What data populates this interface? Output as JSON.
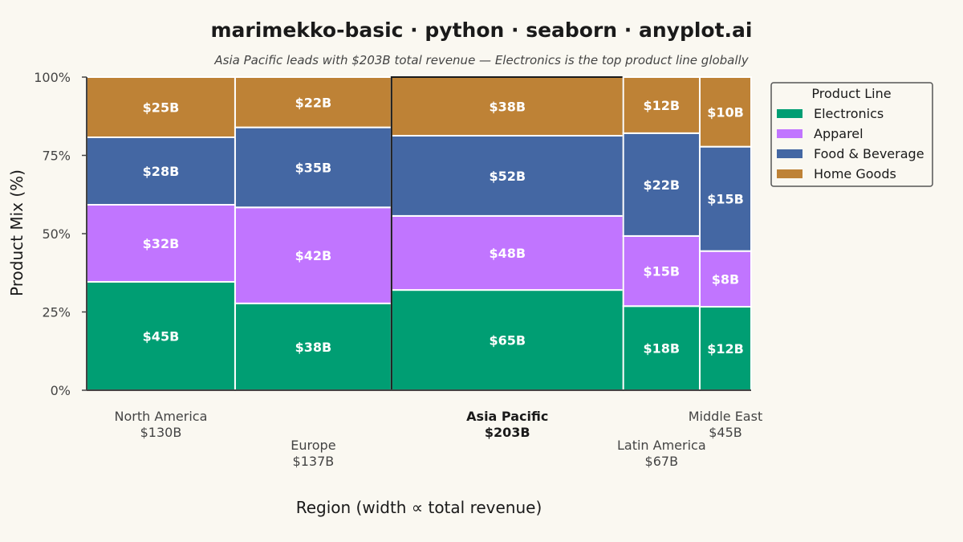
{
  "chart_data": {
    "type": "marimekko",
    "title": "marimekko-basic · python · seaborn · anyplot.ai",
    "subtitle": "Asia Pacific leads with $203B total revenue — Electronics is the top product line globally",
    "xlabel": "Region (width ∝ total revenue)",
    "ylabel": "Product Mix (%)",
    "y_ticks": [
      "0%",
      "25%",
      "50%",
      "75%",
      "100%"
    ],
    "ylim": [
      0,
      100
    ],
    "legend": {
      "title": "Product Line",
      "position": "upper-right-outside"
    },
    "highlight_region": "Asia Pacific",
    "series": [
      {
        "name": "Electronics",
        "color": "#009E73"
      },
      {
        "name": "Apparel",
        "color": "#C175FF"
      },
      {
        "name": "Food & Beverage",
        "color": "#4467A3"
      },
      {
        "name": "Home Goods",
        "color": "#BE8236"
      }
    ],
    "regions": [
      {
        "name": "North America",
        "total_label": "$130B",
        "values": [
          45,
          32,
          28,
          25
        ],
        "value_labels": [
          "$45B",
          "$32B",
          "$28B",
          "$25B"
        ]
      },
      {
        "name": "Europe",
        "total_label": "$137B",
        "values": [
          38,
          42,
          35,
          22
        ],
        "value_labels": [
          "$38B",
          "$42B",
          "$35B",
          "$22B"
        ]
      },
      {
        "name": "Asia Pacific",
        "total_label": "$203B",
        "values": [
          65,
          48,
          52,
          38
        ],
        "value_labels": [
          "$65B",
          "$48B",
          "$52B",
          "$38B"
        ]
      },
      {
        "name": "Latin America",
        "total_label": "$67B",
        "values": [
          18,
          15,
          22,
          12
        ],
        "value_labels": [
          "$18B",
          "$15B",
          "$22B",
          "$12B"
        ]
      },
      {
        "name": "Middle East",
        "total_label": "$45B",
        "values": [
          12,
          8,
          15,
          10
        ],
        "value_labels": [
          "$12B",
          "$8B",
          "$15B",
          "$10B"
        ]
      }
    ]
  }
}
